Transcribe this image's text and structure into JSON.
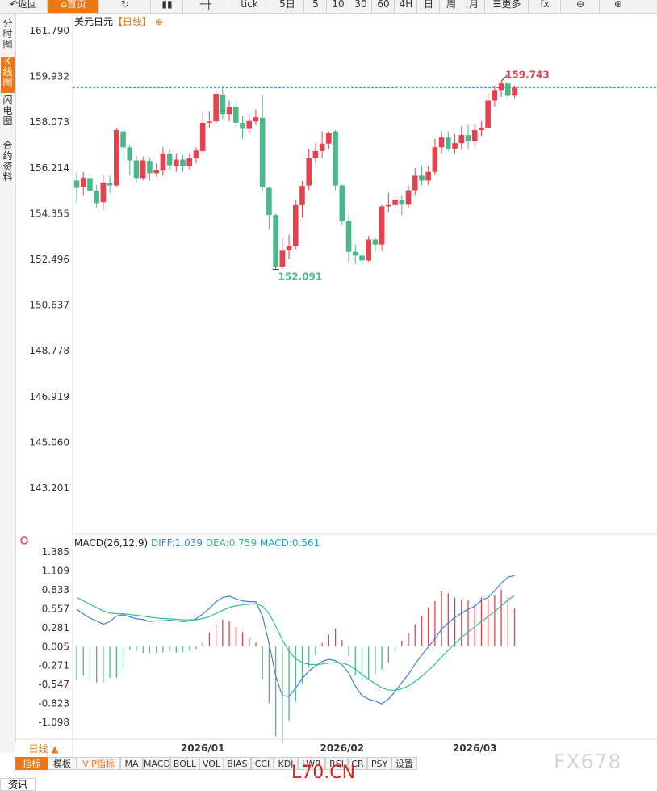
{
  "toolbar": {
    "items": [
      {
        "label": "返回",
        "icon": "back-arrow-icon"
      },
      {
        "label": "首页",
        "icon": "home-icon"
      },
      {
        "label": "",
        "icon": "refresh-icon"
      },
      {
        "label": "",
        "icon": "bar-chart-icon"
      },
      {
        "label": "",
        "icon": "candlestick-icon"
      },
      {
        "label": "tick"
      },
      {
        "label": "5日"
      },
      {
        "label": "5"
      },
      {
        "label": "10"
      },
      {
        "label": "30"
      },
      {
        "label": "60"
      },
      {
        "label": "4H"
      },
      {
        "label": "日"
      },
      {
        "label": "周"
      },
      {
        "label": "月"
      },
      {
        "label": "更多",
        "icon": "menu-icon"
      },
      {
        "label": "fx",
        "icon": "formula-icon"
      },
      {
        "label": "",
        "icon": "zoom-out-icon"
      },
      {
        "label": "",
        "icon": "zoom-in-icon"
      }
    ],
    "active_index": 1
  },
  "sidenav": {
    "items": [
      "分时图",
      "K线图",
      "闪电图",
      "合约资料"
    ],
    "active_index": 1
  },
  "main_title": {
    "symbol": "美元日元",
    "period": "【日线】",
    "gear": "⊕"
  },
  "macd_title": {
    "name": "MACD(26,12,9)",
    "diff": "DIFF:1.039",
    "dea": "DEA:0.759",
    "macd": "MACD:0.561"
  },
  "colors": {
    "up": "#e8404d",
    "down": "#4cb88a",
    "diff_line": "#3b82e6",
    "dea_line": "#2ebf91",
    "accent": "#f0760f",
    "ref_line": "#1e90c8"
  },
  "chart_data": [
    {
      "type": "candlestick",
      "y_ticks": [
        "161.790",
        "159.932",
        "158.073",
        "156.214",
        "154.355",
        "152.496",
        "150.637",
        "148.778",
        "146.919",
        "145.060",
        "143.201"
      ],
      "ylim": [
        142.2,
        162.4
      ],
      "x_ticks": [
        {
          "label": "2026/01",
          "index": 19
        },
        {
          "label": "2026/02",
          "index": 40
        },
        {
          "label": "2026/03",
          "index": 60
        }
      ],
      "annotations": {
        "max_label": "159.743",
        "min_label": "152.091"
      },
      "reference_line": 159.48,
      "candles": [
        [
          155.7,
          155.4,
          156.02,
          154.8
        ],
        [
          155.42,
          155.82,
          156.05,
          155.1
        ],
        [
          155.8,
          155.28,
          156.0,
          154.9
        ],
        [
          155.28,
          154.78,
          155.52,
          154.6
        ],
        [
          154.82,
          155.62,
          155.95,
          154.5
        ],
        [
          155.6,
          155.5,
          155.9,
          155.2
        ],
        [
          155.5,
          157.75,
          157.85,
          155.45
        ],
        [
          157.7,
          157.05,
          157.8,
          156.4
        ],
        [
          157.05,
          156.52,
          157.15,
          155.9
        ],
        [
          156.52,
          155.8,
          156.7,
          155.6
        ],
        [
          155.8,
          156.52,
          156.68,
          155.7
        ],
        [
          156.5,
          156.0,
          156.62,
          155.7
        ],
        [
          156.0,
          156.12,
          156.4,
          155.85
        ],
        [
          156.1,
          156.8,
          157.05,
          155.9
        ],
        [
          156.8,
          156.32,
          157.0,
          156.1
        ],
        [
          156.3,
          156.55,
          156.8,
          156.05
        ],
        [
          156.55,
          156.28,
          156.75,
          156.05
        ],
        [
          156.28,
          156.6,
          156.8,
          156.15
        ],
        [
          156.6,
          156.92,
          157.05,
          156.4
        ],
        [
          156.9,
          158.05,
          158.5,
          156.85
        ],
        [
          158.05,
          158.1,
          158.5,
          157.85
        ],
        [
          158.1,
          159.23,
          159.35,
          158.0
        ],
        [
          159.2,
          158.4,
          159.53,
          158.2
        ],
        [
          158.4,
          158.7,
          158.95,
          158.1
        ],
        [
          158.7,
          158.05,
          158.95,
          157.8
        ],
        [
          158.05,
          157.8,
          158.3,
          157.4
        ],
        [
          157.8,
          158.12,
          158.4,
          157.6
        ],
        [
          158.1,
          158.27,
          158.6,
          157.95
        ],
        [
          158.25,
          155.45,
          159.2,
          155.3
        ],
        [
          155.4,
          154.3,
          155.45,
          153.7
        ],
        [
          154.3,
          152.2,
          154.35,
          152.09
        ],
        [
          152.2,
          152.85,
          153.4,
          152.1
        ],
        [
          152.85,
          153.05,
          153.5,
          152.5
        ],
        [
          153.05,
          154.7,
          154.9,
          152.9
        ],
        [
          154.7,
          155.48,
          155.7,
          154.2
        ],
        [
          155.5,
          156.6,
          157.0,
          155.3
        ],
        [
          156.6,
          156.9,
          157.2,
          156.4
        ],
        [
          156.9,
          157.2,
          157.7,
          156.6
        ],
        [
          157.2,
          157.65,
          157.7,
          157.0
        ],
        [
          157.7,
          155.5,
          157.75,
          155.3
        ],
        [
          155.5,
          154.05,
          155.55,
          153.9
        ],
        [
          154.05,
          152.8,
          154.3,
          152.35
        ],
        [
          152.8,
          152.65,
          153.1,
          152.3
        ],
        [
          152.65,
          152.45,
          152.9,
          152.25
        ],
        [
          152.45,
          153.3,
          153.45,
          152.4
        ],
        [
          153.3,
          153.1,
          153.4,
          152.8
        ],
        [
          153.1,
          154.65,
          154.7,
          152.85
        ],
        [
          154.65,
          154.7,
          155.2,
          154.4
        ],
        [
          154.7,
          154.92,
          155.2,
          154.4
        ],
        [
          154.92,
          154.72,
          155.1,
          154.3
        ],
        [
          154.72,
          155.3,
          155.5,
          154.6
        ],
        [
          155.3,
          155.9,
          156.2,
          155.1
        ],
        [
          155.9,
          155.7,
          156.3,
          155.5
        ],
        [
          155.7,
          156.05,
          156.3,
          155.5
        ],
        [
          156.05,
          157.05,
          157.4,
          155.95
        ],
        [
          157.05,
          157.45,
          157.7,
          156.8
        ],
        [
          157.45,
          157.0,
          157.7,
          156.9
        ],
        [
          157.0,
          157.22,
          157.6,
          156.8
        ],
        [
          157.22,
          157.55,
          157.9,
          156.95
        ],
        [
          157.55,
          157.3,
          157.95,
          156.95
        ],
        [
          157.3,
          157.75,
          158.0,
          157.1
        ],
        [
          157.75,
          157.85,
          158.1,
          157.5
        ],
        [
          157.85,
          158.95,
          159.25,
          157.8
        ],
        [
          158.95,
          159.35,
          159.55,
          158.7
        ],
        [
          159.35,
          159.65,
          159.74,
          159.1
        ],
        [
          159.65,
          159.15,
          159.7,
          158.95
        ],
        [
          159.15,
          159.48,
          159.55,
          159.05
        ]
      ]
    },
    {
      "type": "macd",
      "y_ticks": [
        "1.385",
        "1.109",
        "0.833",
        "0.557",
        "0.281",
        "0.005",
        "-0.271",
        "-0.547",
        "-0.823",
        "-1.098"
      ],
      "ylim": [
        -1.35,
        1.55
      ],
      "histogram": [
        -0.48,
        -0.42,
        -0.47,
        -0.52,
        -0.52,
        -0.45,
        -0.45,
        -0.3,
        -0.04,
        -0.05,
        -0.09,
        -0.09,
        -0.09,
        -0.08,
        -0.05,
        -0.08,
        -0.07,
        -0.05,
        -0.03,
        0.06,
        0.21,
        0.33,
        0.4,
        0.38,
        0.29,
        0.22,
        0.13,
        0.06,
        -0.46,
        -0.82,
        -1.3,
        -1.4,
        -1.07,
        -0.8,
        -0.53,
        -0.3,
        -0.12,
        0.06,
        0.18,
        0.27,
        0.1,
        -0.13,
        -0.42,
        -0.49,
        -0.48,
        -0.4,
        -0.33,
        -0.23,
        -0.08,
        0.09,
        0.2,
        0.33,
        0.45,
        0.58,
        0.67,
        0.82,
        0.78,
        0.72,
        0.69,
        0.68,
        0.62,
        0.72,
        0.7,
        0.75,
        0.84,
        0.73,
        0.56
      ],
      "diff": [
        0.55,
        0.48,
        0.42,
        0.38,
        0.33,
        0.37,
        0.45,
        0.47,
        0.44,
        0.41,
        0.4,
        0.37,
        0.38,
        0.38,
        0.39,
        0.38,
        0.37,
        0.38,
        0.41,
        0.48,
        0.56,
        0.66,
        0.72,
        0.74,
        0.7,
        0.67,
        0.66,
        0.66,
        0.45,
        0.05,
        -0.42,
        -0.71,
        -0.72,
        -0.6,
        -0.46,
        -0.35,
        -0.28,
        -0.21,
        -0.18,
        -0.2,
        -0.26,
        -0.38,
        -0.57,
        -0.71,
        -0.76,
        -0.79,
        -0.83,
        -0.76,
        -0.65,
        -0.52,
        -0.4,
        -0.25,
        -0.12,
        0.0,
        0.12,
        0.26,
        0.35,
        0.43,
        0.49,
        0.55,
        0.59,
        0.68,
        0.72,
        0.82,
        0.93,
        1.02,
        1.04
      ]
    }
  ],
  "bottom": {
    "day_label": "日线 ▲",
    "tabs": [
      "指标",
      "模板",
      "VIP指标",
      "MA",
      "MACD",
      "BOLL",
      "VOL",
      "BIAS",
      "CCI",
      "KDJ",
      "LWR",
      "RSI",
      "CR",
      "PSY",
      "设置"
    ],
    "active_index": 0,
    "vip_index": 2,
    "news_tab": "资讯"
  },
  "watermarks": {
    "fx": "FX678",
    "site": "L70.CN"
  }
}
